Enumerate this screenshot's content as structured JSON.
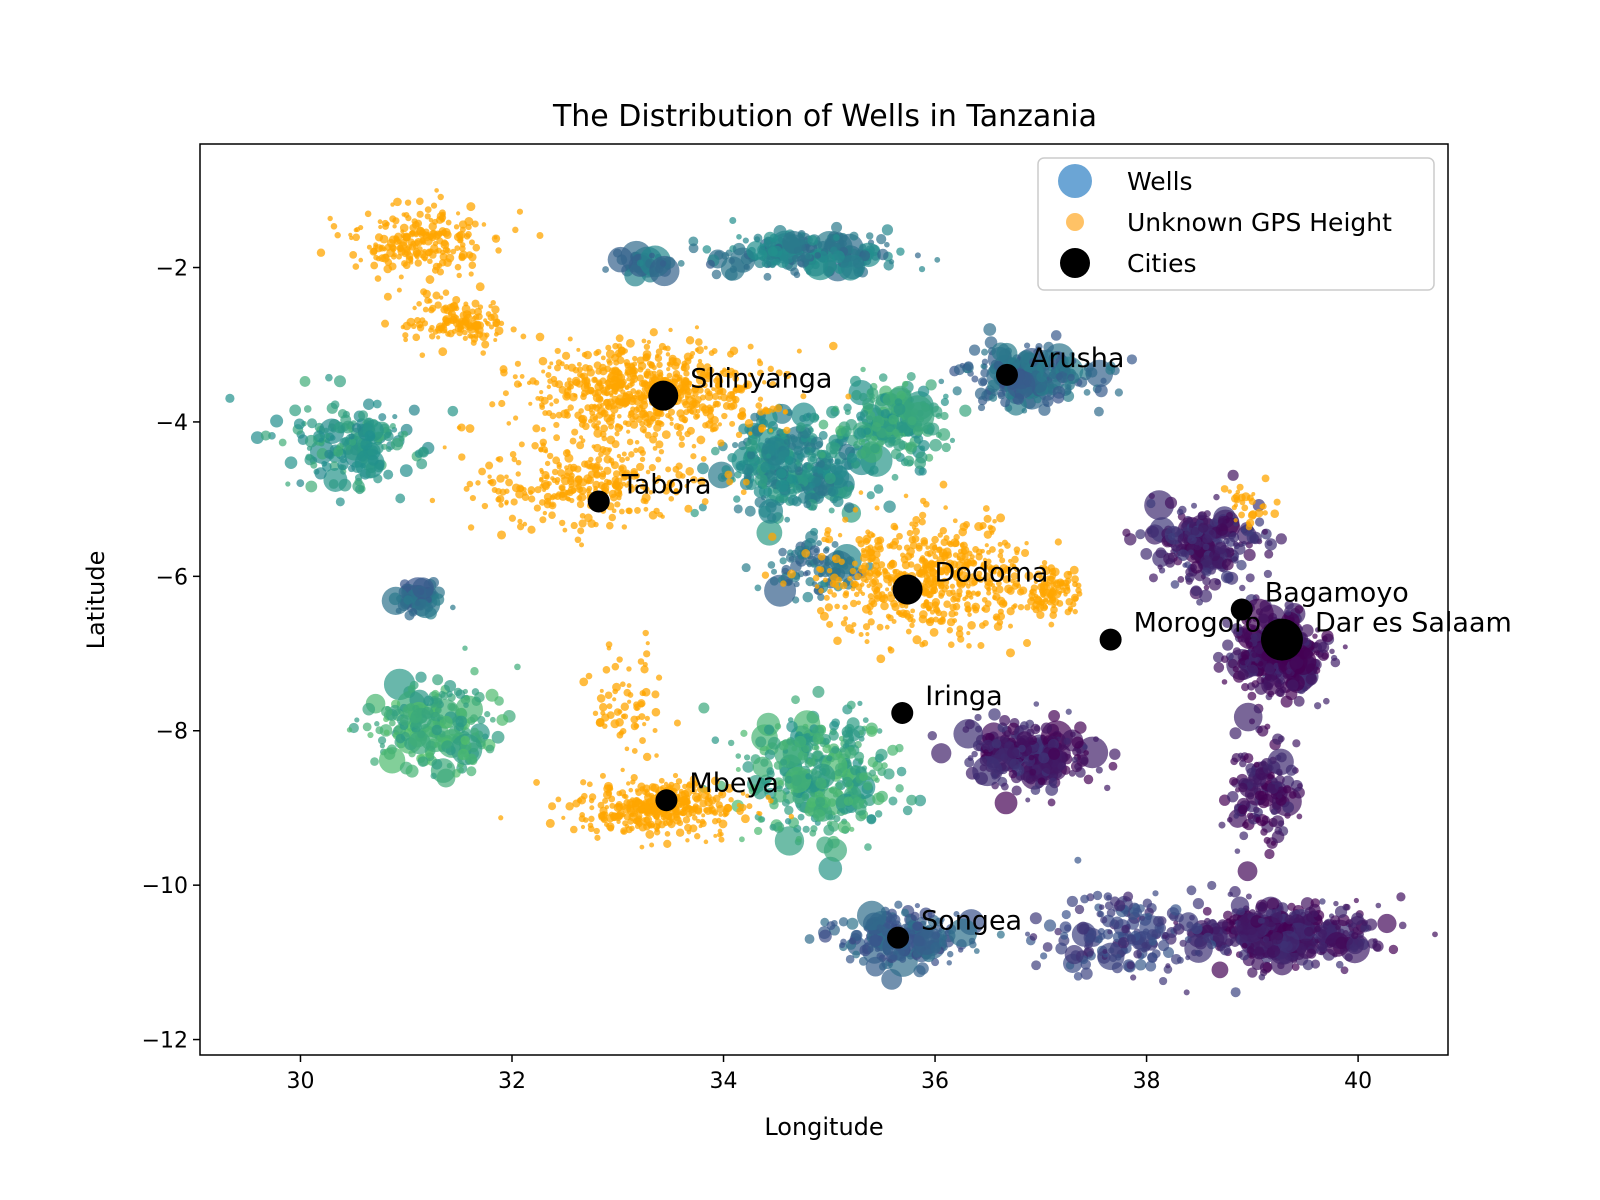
{
  "chart_data": {
    "type": "scatter",
    "title": "The Distribution of Wells in Tanzania",
    "xlabel": "Longitude",
    "ylabel": "Latitude",
    "xlim": [
      29.05,
      40.85
    ],
    "ylim": [
      -12.2,
      -0.4
    ],
    "xticks": [
      30,
      32,
      34,
      36,
      38,
      40
    ],
    "yticks": [
      -2,
      -4,
      -6,
      -8,
      -10,
      -12
    ],
    "grid": false,
    "legend_position": "top-right",
    "legend": [
      {
        "label": "Wells",
        "marker": "circle",
        "color": "#5b9bd0"
      },
      {
        "label": "Unknown GPS Height",
        "marker": "circle",
        "color": "#ffc266"
      },
      {
        "label": "Cities",
        "marker": "circle",
        "color": "#000000"
      }
    ],
    "colors": {
      "unknown_gps_height": "#ffa500",
      "cities": "#000000",
      "wells_colormap": [
        "#440154",
        "#3b528b",
        "#21908d",
        "#5dc963",
        "#fde725"
      ]
    },
    "cities": [
      {
        "name": "Arusha",
        "lon": 36.68,
        "lat": -3.39,
        "size": 1
      },
      {
        "name": "Shinyanga",
        "lon": 33.43,
        "lat": -3.66,
        "size": 2
      },
      {
        "name": "Tabora",
        "lon": 32.82,
        "lat": -5.03,
        "size": 1
      },
      {
        "name": "Dodoma",
        "lon": 35.74,
        "lat": -6.17,
        "size": 2
      },
      {
        "name": "Bagamoyo",
        "lon": 38.9,
        "lat": -6.43,
        "size": 1
      },
      {
        "name": "Morogoro",
        "lon": 37.66,
        "lat": -6.82,
        "size": 1
      },
      {
        "name": "Dar es Salaam",
        "lon": 39.28,
        "lat": -6.82,
        "size": 3
      },
      {
        "name": "Iringa",
        "lon": 35.69,
        "lat": -7.77,
        "size": 1
      },
      {
        "name": "Mbeya",
        "lon": 33.46,
        "lat": -8.9,
        "size": 1
      },
      {
        "name": "Songea",
        "lon": 35.65,
        "lat": -10.68,
        "size": 1
      }
    ],
    "unknown_gps_height_regions": [
      {
        "lon": 33.3,
        "lat": -3.6,
        "spread_lon": 1.0,
        "spread_lat": 0.55,
        "n": 650
      },
      {
        "lon": 32.7,
        "lat": -4.8,
        "spread_lon": 0.9,
        "spread_lat": 0.5,
        "n": 300
      },
      {
        "lon": 31.1,
        "lat": -1.7,
        "spread_lon": 0.55,
        "spread_lat": 0.45,
        "n": 220
      },
      {
        "lon": 31.5,
        "lat": -2.7,
        "spread_lon": 0.5,
        "spread_lat": 0.25,
        "n": 140
      },
      {
        "lon": 35.9,
        "lat": -6.0,
        "spread_lon": 0.9,
        "spread_lat": 0.7,
        "n": 550
      },
      {
        "lon": 37.1,
        "lat": -6.2,
        "spread_lon": 0.25,
        "spread_lat": 0.25,
        "n": 90
      },
      {
        "lon": 33.4,
        "lat": -9.0,
        "spread_lon": 0.75,
        "spread_lat": 0.3,
        "n": 380
      },
      {
        "lon": 33.1,
        "lat": -7.6,
        "spread_lon": 0.35,
        "spread_lat": 0.7,
        "n": 70
      },
      {
        "lon": 39.0,
        "lat": -5.1,
        "spread_lon": 0.2,
        "spread_lat": 0.25,
        "n": 30
      }
    ],
    "wells_regions": [
      {
        "lon": 34.8,
        "lat": -1.8,
        "spread_lon": 0.8,
        "spread_lat": 0.25,
        "n": 220,
        "value": 0.42
      },
      {
        "lon": 33.3,
        "lat": -1.95,
        "spread_lon": 0.3,
        "spread_lat": 0.12,
        "n": 40,
        "value": 0.38
      },
      {
        "lon": 30.5,
        "lat": -4.3,
        "spread_lon": 0.55,
        "spread_lat": 0.5,
        "n": 180,
        "value": 0.55
      },
      {
        "lon": 31.1,
        "lat": -6.3,
        "spread_lon": 0.2,
        "spread_lat": 0.18,
        "n": 60,
        "value": 0.35
      },
      {
        "lon": 31.3,
        "lat": -7.9,
        "spread_lon": 0.55,
        "spread_lat": 0.55,
        "n": 220,
        "value": 0.62
      },
      {
        "lon": 34.7,
        "lat": -4.6,
        "spread_lon": 0.55,
        "spread_lat": 0.5,
        "n": 380,
        "value": 0.48
      },
      {
        "lon": 35.6,
        "lat": -4.0,
        "spread_lon": 0.45,
        "spread_lat": 0.45,
        "n": 200,
        "value": 0.58
      },
      {
        "lon": 36.9,
        "lat": -3.4,
        "spread_lon": 0.6,
        "spread_lat": 0.3,
        "n": 260,
        "value": 0.35
      },
      {
        "lon": 34.9,
        "lat": -8.6,
        "spread_lon": 0.6,
        "spread_lat": 0.7,
        "n": 360,
        "value": 0.6
      },
      {
        "lon": 35.7,
        "lat": -10.7,
        "spread_lon": 0.55,
        "spread_lat": 0.3,
        "n": 220,
        "value": 0.3
      },
      {
        "lon": 34.9,
        "lat": -5.9,
        "spread_lon": 0.4,
        "spread_lat": 0.3,
        "n": 90,
        "value": 0.38
      },
      {
        "lon": 39.25,
        "lat": -7.0,
        "spread_lon": 0.35,
        "spread_lat": 0.45,
        "n": 380,
        "value": 0.05
      },
      {
        "lon": 38.6,
        "lat": -5.6,
        "spread_lon": 0.55,
        "spread_lat": 0.5,
        "n": 240,
        "value": 0.1
      },
      {
        "lon": 36.9,
        "lat": -8.3,
        "spread_lon": 0.55,
        "spread_lat": 0.4,
        "n": 260,
        "value": 0.08
      },
      {
        "lon": 39.3,
        "lat": -10.6,
        "spread_lon": 0.75,
        "spread_lat": 0.35,
        "n": 460,
        "value": 0.08
      },
      {
        "lon": 37.8,
        "lat": -10.6,
        "spread_lon": 0.7,
        "spread_lat": 0.5,
        "n": 180,
        "value": 0.2
      },
      {
        "lon": 39.1,
        "lat": -8.8,
        "spread_lon": 0.3,
        "spread_lat": 0.6,
        "n": 140,
        "value": 0.05
      }
    ]
  }
}
